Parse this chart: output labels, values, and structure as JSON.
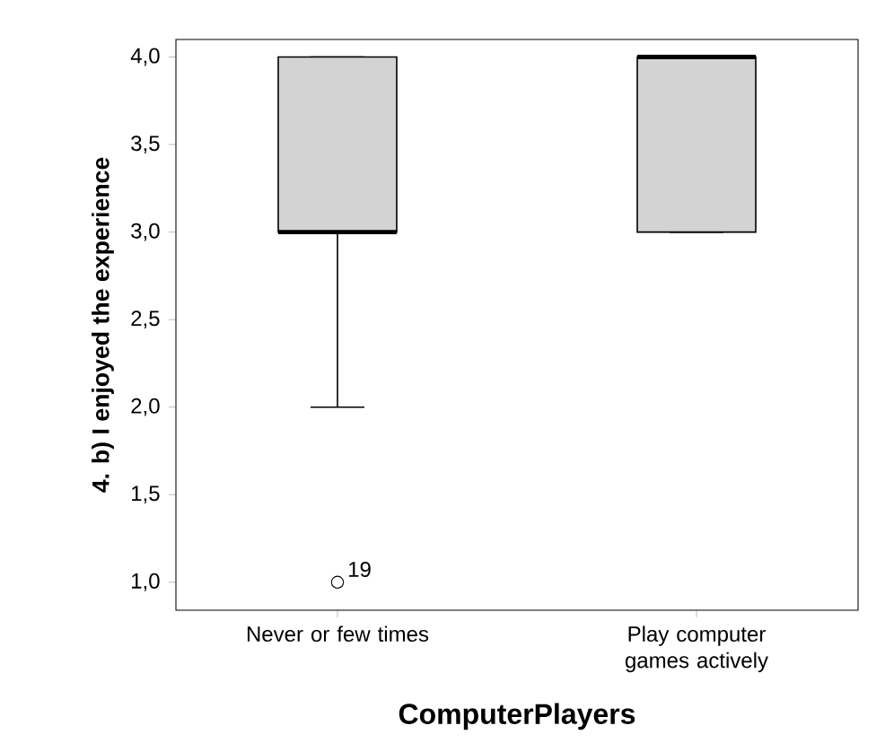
{
  "chart_data": {
    "type": "box",
    "xlabel": "ComputerPlayers",
    "ylabel": "4. b) I enjoyed the experience",
    "categories": [
      "Never or few times",
      "Play computer games actively"
    ],
    "series": [
      {
        "color": "#d3d3d3",
        "boxes": [
          {
            "low": 2,
            "q1": 3,
            "median": 3,
            "q3": 4,
            "high": 4,
            "outliers": [
              1
            ]
          },
          {
            "low": 3,
            "q1": 3,
            "median": 4,
            "q3": 4,
            "high": 4
          }
        ]
      }
    ],
    "ylim": [
      0.84,
      4.1
    ],
    "yticks": [
      {
        "value": 1,
        "label": "1,0"
      },
      {
        "value": 1.5,
        "label": "1,5"
      },
      {
        "value": 2,
        "label": "2,0"
      },
      {
        "value": 2.5,
        "label": "2,5"
      },
      {
        "value": 3,
        "label": "3,0"
      },
      {
        "value": 3.5,
        "label": "3,5"
      },
      {
        "value": 4,
        "label": "4,0"
      }
    ],
    "annotations": [
      "19"
    ]
  }
}
